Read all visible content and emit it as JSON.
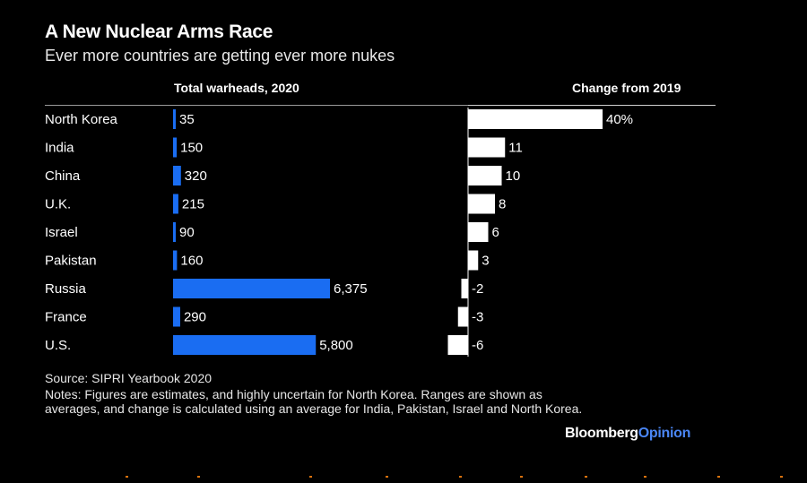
{
  "header": {
    "title": "A New Nuclear Arms Race",
    "subtitle": "Ever more countries are getting ever more nukes"
  },
  "columns": {
    "left": "Total warheads, 2020",
    "right": "Change from 2019"
  },
  "colors": {
    "background": "#000000",
    "warheads_bar": "#1a6df2",
    "change_bar": "#ffffff"
  },
  "chart_data": [
    {
      "type": "bar",
      "orientation": "horizontal",
      "title": "Total warheads, 2020",
      "categories": [
        "North Korea",
        "India",
        "China",
        "U.K.",
        "Israel",
        "Pakistan",
        "Russia",
        "France",
        "U.S."
      ],
      "values": [
        35,
        150,
        320,
        215,
        90,
        160,
        6375,
        290,
        5800
      ],
      "value_labels": [
        "35",
        "150",
        "320",
        "215",
        "90",
        "160",
        "6,375",
        "290",
        "5,800"
      ],
      "color": "#1a6df2"
    },
    {
      "type": "bar",
      "orientation": "horizontal",
      "title": "Change from 2019",
      "categories": [
        "North Korea",
        "India",
        "China",
        "U.K.",
        "Israel",
        "Pakistan",
        "Russia",
        "France",
        "U.S."
      ],
      "values": [
        40,
        11,
        10,
        8,
        6,
        3,
        -2,
        -3,
        -6
      ],
      "value_labels": [
        "40%",
        "11",
        "10",
        "8",
        "6",
        "3",
        "-2",
        "-3",
        "-6"
      ],
      "unit": "%",
      "color": "#ffffff"
    }
  ],
  "footer": {
    "source": "Source: SIPRI Yearbook 2020",
    "notes": "Notes: Figures are estimates, and highly uncertain for North Korea. Ranges are shown as averages, and change is calculated using an average for India, Pakistan, Israel and North Korea.",
    "brand_main": "Bloomberg",
    "brand_accent": "Opinion"
  }
}
